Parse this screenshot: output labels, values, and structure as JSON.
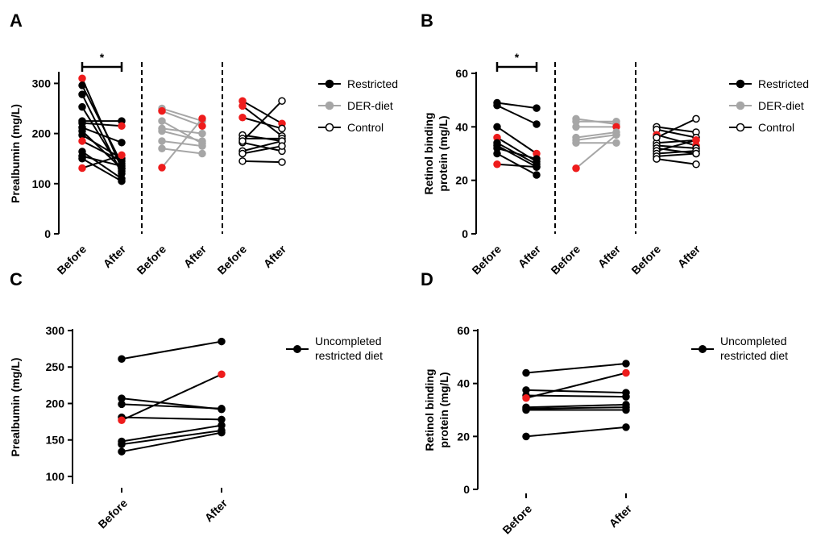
{
  "colors": {
    "restricted": "#000000",
    "der": "#a6a6a6",
    "control": "#000000",
    "highlight": "#ee1c1c"
  },
  "legend_labels": {
    "restricted": "Restricted",
    "der": "DER-diet",
    "control": "Control",
    "uncompleted_1": "Uncompleted",
    "uncompleted_2": "restricted diet"
  },
  "chart_data": [
    {
      "panel": "A",
      "type": "line",
      "ylabel": "Prealbumin (mg/L)",
      "ylim": [
        0,
        320
      ],
      "yticks": [
        0,
        100,
        200,
        300
      ],
      "categories": [
        "Before",
        "After",
        "Before",
        "After",
        "Before",
        "After"
      ],
      "significance": "*",
      "groups": [
        {
          "name": "Restricted",
          "pairs": [
            [
              310,
              130
            ],
            [
              296,
              140
            ],
            [
              278,
              120
            ],
            [
              253,
              125
            ],
            [
              225,
              225
            ],
            [
              221,
              215
            ],
            [
              212,
              182
            ],
            [
              205,
              130
            ],
            [
              197,
              150
            ],
            [
              185,
              145
            ],
            [
              164,
              110
            ],
            [
              155,
              135
            ],
            [
              150,
              105
            ],
            [
              131,
              157
            ]
          ],
          "red_before": [
            310,
            185,
            131
          ],
          "red_after": [
            157,
            215
          ]
        },
        {
          "name": "DER-diet",
          "pairs": [
            [
              250,
              225
            ],
            [
              245,
              215
            ],
            [
              225,
              180
            ],
            [
              210,
              200
            ],
            [
              205,
              185
            ],
            [
              185,
              175
            ],
            [
              170,
              160
            ],
            [
              132,
              230
            ]
          ],
          "red_before": [
            245,
            132
          ],
          "red_after": [
            230,
            215
          ]
        },
        {
          "name": "Control",
          "pairs": [
            [
              265,
              220
            ],
            [
              255,
              195
            ],
            [
              232,
              210
            ],
            [
              197,
              185
            ],
            [
              190,
              190
            ],
            [
              182,
              165
            ],
            [
              165,
              185
            ],
            [
              160,
              175
            ],
            [
              145,
              143
            ],
            [
              185,
              265
            ]
          ],
          "red_before": [
            265,
            255,
            232
          ],
          "red_after": [
            220,
            205
          ]
        }
      ]
    },
    {
      "panel": "B",
      "type": "line",
      "ylabel_1": "Retinol binding",
      "ylabel_2": "protein (mg/L)",
      "ylim": [
        0,
        60
      ],
      "yticks": [
        0,
        20,
        40,
        60
      ],
      "categories": [
        "Before",
        "After",
        "Before",
        "After",
        "Before",
        "After"
      ],
      "significance": "*",
      "groups": [
        {
          "name": "Restricted",
          "pairs": [
            [
              49,
              47
            ],
            [
              48,
              41
            ],
            [
              40,
              30
            ],
            [
              36,
              27
            ],
            [
              34,
              26
            ],
            [
              33,
              25
            ],
            [
              32,
              28
            ],
            [
              30,
              22
            ],
            [
              26,
              25
            ]
          ],
          "red_before": [
            36,
            31,
            26
          ],
          "red_after": [
            30,
            29
          ]
        },
        {
          "name": "DER-diet",
          "pairs": [
            [
              43,
              41
            ],
            [
              42,
              42
            ],
            [
              40,
              40
            ],
            [
              36,
              38
            ],
            [
              35,
              37
            ],
            [
              34,
              34
            ],
            [
              24.5,
              37
            ]
          ],
          "red_before": [
            24.5
          ],
          "red_after": [
            40
          ]
        },
        {
          "name": "Control",
          "pairs": [
            [
              40,
              38
            ],
            [
              39,
              36
            ],
            [
              37,
              33
            ],
            [
              34,
              35
            ],
            [
              33,
              32
            ],
            [
              32,
              30
            ],
            [
              31,
              35
            ],
            [
              30,
              31
            ],
            [
              29,
              30
            ],
            [
              28,
              26
            ],
            [
              36,
              43
            ]
          ],
          "red_before": [
            37
          ],
          "red_after": [
            35,
            33
          ]
        }
      ]
    },
    {
      "panel": "C",
      "type": "line",
      "ylabel": "Prealbumin (mg/L)",
      "ylim": [
        90,
        300
      ],
      "yticks": [
        100,
        150,
        200,
        250,
        300
      ],
      "categories": [
        "Before",
        "After"
      ],
      "pairs": [
        [
          261,
          285
        ],
        [
          207,
          192
        ],
        [
          199,
          193
        ],
        [
          181,
          178
        ],
        [
          177,
          240
        ],
        [
          148,
          170
        ],
        [
          144,
          163
        ],
        [
          134,
          160
        ]
      ],
      "red_before": [
        177
      ],
      "red_after": [
        240
      ]
    },
    {
      "panel": "D",
      "type": "line",
      "ylabel_1": "Retinol binding",
      "ylabel_2": "protein (mg/L)",
      "ylim": [
        0,
        60
      ],
      "yticks": [
        0,
        20,
        40,
        60
      ],
      "categories": [
        "Before",
        "After"
      ],
      "pairs": [
        [
          44,
          47.5
        ],
        [
          37.5,
          36.5
        ],
        [
          35.5,
          35
        ],
        [
          34.5,
          44
        ],
        [
          31,
          32
        ],
        [
          30.5,
          31
        ],
        [
          30,
          30
        ],
        [
          20,
          23.5
        ]
      ],
      "red_before": [
        34.5
      ],
      "red_after": [
        44
      ]
    }
  ]
}
